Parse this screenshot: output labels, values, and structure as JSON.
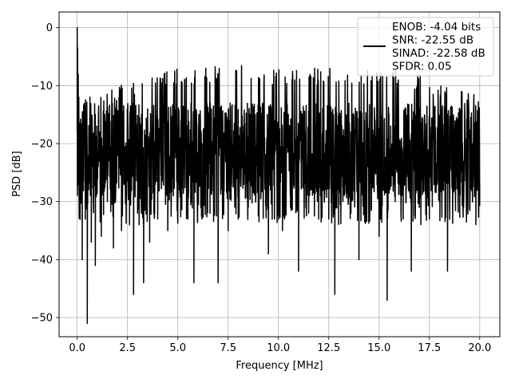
{
  "chart_data": {
    "type": "line",
    "title": "",
    "xlabel": "Frequency [MHz]",
    "ylabel": "PSD [dB]",
    "xlim": [
      -0.9,
      21.0
    ],
    "ylim": [
      -53.3,
      2.7
    ],
    "grid": true,
    "legend_position": "top-right",
    "x_ticks": [
      {
        "value": 0.0,
        "label": "0.0"
      },
      {
        "value": 2.5,
        "label": "2.5"
      },
      {
        "value": 5.0,
        "label": "5.0"
      },
      {
        "value": 7.5,
        "label": "7.5"
      },
      {
        "value": 10.0,
        "label": "10.0"
      },
      {
        "value": 12.5,
        "label": "12.5"
      },
      {
        "value": 15.0,
        "label": "15.0"
      },
      {
        "value": 17.5,
        "label": "17.5"
      },
      {
        "value": 20.0,
        "label": "20.0"
      }
    ],
    "y_ticks": [
      {
        "value": 0,
        "label": "0"
      },
      {
        "value": -10,
        "label": "−10"
      },
      {
        "value": -20,
        "label": "−20"
      },
      {
        "value": -30,
        "label": "−30"
      },
      {
        "value": -40,
        "label": "−40"
      },
      {
        "value": -50,
        "label": "−50"
      }
    ],
    "series": [
      {
        "name": "ENOB: -4.04 bits\nSNR: -22.55 dB\nSINAD: -22.58 dB\nSFDR: 0.05",
        "color": "#000000",
        "x": [
          0.0,
          0.02,
          0.05,
          0.08,
          0.12,
          0.15,
          0.2,
          0.25,
          0.3,
          0.35,
          0.4,
          0.45,
          0.5,
          0.55,
          0.6,
          0.7,
          0.8,
          0.9,
          1.0,
          1.2,
          1.5,
          1.8,
          2.2,
          2.6,
          2.8,
          3.0,
          3.3,
          3.6,
          4.0,
          4.5,
          5.0,
          5.5,
          5.8,
          6.2,
          6.6,
          7.0,
          7.5,
          8.0,
          8.5,
          9.0,
          9.5,
          9.8,
          10.2,
          10.6,
          11.0,
          11.5,
          12.0,
          12.5,
          12.8,
          13.2,
          13.6,
          14.0,
          14.5,
          15.0,
          15.4,
          15.8,
          16.2,
          16.6,
          17.0,
          17.5,
          18.0,
          18.4,
          18.8,
          19.2,
          19.6,
          20.0
        ],
        "values": [
          0.0,
          -3.5,
          -8.0,
          -12.0,
          -16.5,
          -21.0,
          -25.0,
          -40.0,
          -18.0,
          -14.0,
          -33.0,
          -22.0,
          -51.0,
          -27.0,
          -20.0,
          -37.0,
          -28.0,
          -41.0,
          -24.0,
          -36.0,
          -30.0,
          -38.0,
          -35.0,
          -34.0,
          -46.0,
          -32.0,
          -44.0,
          -37.0,
          -33.0,
          -35.0,
          -31.0,
          -33.0,
          -44.0,
          -33.0,
          -32.0,
          -44.0,
          -35.0,
          -33.0,
          -31.0,
          -32.0,
          -39.0,
          -33.0,
          -35.0,
          -31.0,
          -42.0,
          -32.0,
          -33.0,
          -33.0,
          -46.0,
          -30.0,
          -32.0,
          -40.0,
          -31.0,
          -36.0,
          -47.0,
          -30.0,
          -33.0,
          -42.0,
          -31.0,
          -33.0,
          -30.0,
          -42.0,
          -30.0,
          -31.0,
          -28.0,
          -27.0
        ]
      }
    ],
    "upper_envelope": {
      "x": [
        0.1,
        0.3,
        0.5,
        1.0,
        2.0,
        3.0,
        4.0,
        5.0,
        6.0,
        7.0,
        8.0,
        9.0,
        10.0,
        11.0,
        12.0,
        13.0,
        14.0,
        15.0,
        16.0,
        17.0,
        18.0,
        19.0,
        20.0
      ],
      "values": [
        -10.0,
        -10.5,
        -11.0,
        -11.0,
        -10.0,
        -9.0,
        -8.0,
        -7.0,
        -7.0,
        -6.5,
        -6.5,
        -6.5,
        -7.0,
        -7.0,
        -7.0,
        -7.0,
        -7.0,
        -7.0,
        -7.5,
        -8.0,
        -9.0,
        -10.0,
        -12.0
      ]
    }
  }
}
